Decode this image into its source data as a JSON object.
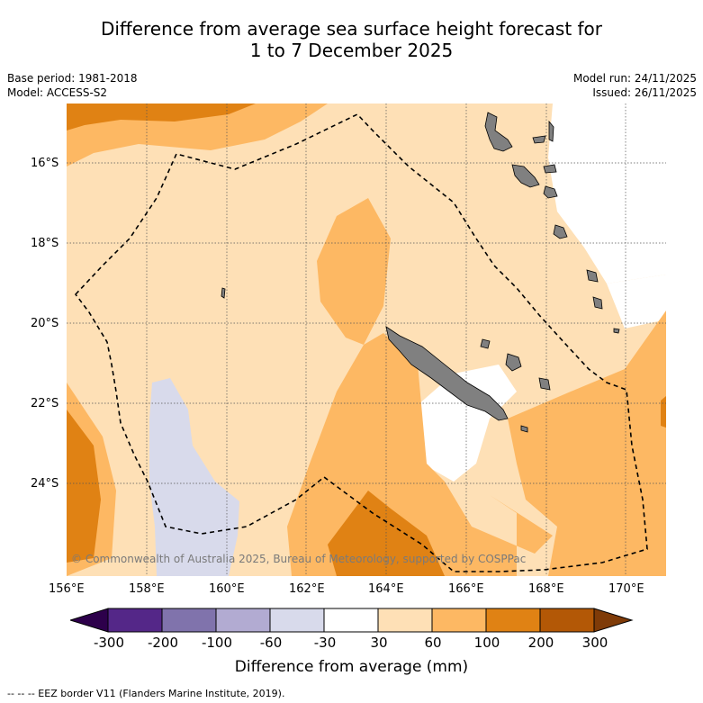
{
  "title": {
    "line1": "Difference from average sea surface height forecast for",
    "line2": "1 to 7 December 2025"
  },
  "meta": {
    "base_period": "Base period: 1981-2018",
    "model": "Model: ACCESS-S2",
    "model_run": "Model run: 24/11/2025",
    "issued": "Issued: 26/11/2025"
  },
  "map": {
    "lon_ticks": [
      "156°E",
      "158°E",
      "160°E",
      "162°E",
      "164°E",
      "166°E",
      "168°E",
      "170°E"
    ],
    "lat_ticks": [
      "16°S",
      "18°S",
      "20°S",
      "22°S",
      "24°S"
    ],
    "copyright": "© Commonwealth of Australia 2025, Bureau of Meteorology, supported by COSPPac",
    "extent": {
      "lon_min": 156,
      "lon_max": 171,
      "lat_max": -14.5,
      "lat_min": -26.3
    }
  },
  "colorbar": {
    "labels": [
      "-300",
      "-200",
      "-100",
      "-60",
      "-30",
      "30",
      "60",
      "100",
      "200",
      "300"
    ],
    "colors": {
      "below_min": "#2d004b",
      "m300_m200": "#542788",
      "m200_m100": "#8073ac",
      "m100_m60": "#b2abd2",
      "m60_m30": "#d8daeb",
      "m30_p30": "#ffffff",
      "p30_p60": "#fee0b6",
      "p60_p100": "#fdb863",
      "p100_p200": "#e08214",
      "p200_p300": "#b35806",
      "above_max": "#7f3b08"
    },
    "title": "Difference from average (mm)"
  },
  "footer": {
    "legend": "--  --  -- EEZ border V11 (Flanders Marine Institute, 2019)."
  }
}
